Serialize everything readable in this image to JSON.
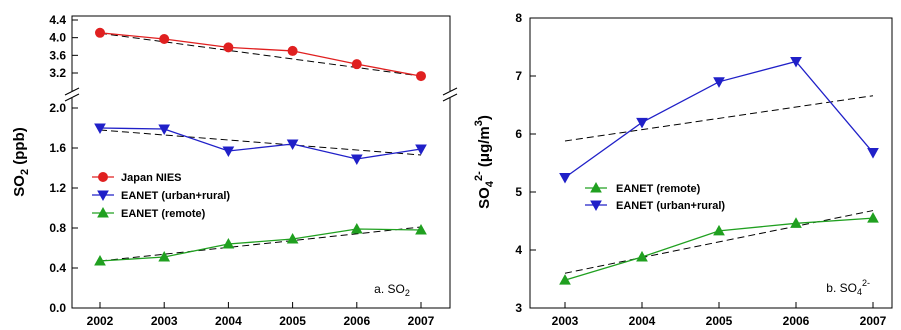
{
  "chart_data": [
    {
      "type": "line",
      "panel_label": {
        "main": "a. SO",
        "sub": "2"
      },
      "ylabel": {
        "main": "SO",
        "sub": "2",
        "rest": " (ppb)"
      },
      "x": [
        2002,
        2003,
        2004,
        2005,
        2006,
        2007
      ],
      "x_tick_labels": [
        "2002",
        "2003",
        "2004",
        "2005",
        "2006",
        "2007"
      ],
      "y_broken_axis": true,
      "y_upper_ticks": [
        "3.2",
        "3.6",
        "4.0",
        "4.4"
      ],
      "y_upper_tick_values": [
        3.2,
        3.6,
        4.0,
        4.4
      ],
      "y_upper_range": [
        3.0,
        4.4
      ],
      "y_lower_ticks": [
        "0.0",
        "0.4",
        "0.8",
        "1.2",
        "1.6",
        "2.0"
      ],
      "y_lower_tick_values": [
        0.0,
        0.4,
        0.8,
        1.2,
        1.6,
        2.0
      ],
      "y_lower_range": [
        0.0,
        2.2
      ],
      "legend_position": "middle-left",
      "series": [
        {
          "name": "Japan NIES",
          "color": "#e02020",
          "marker": "circle",
          "segment": "upper",
          "x": [
            2002,
            2003,
            2004,
            2005,
            2006,
            2007
          ],
          "values": [
            4.11,
            3.97,
            3.78,
            3.7,
            3.4,
            3.13
          ],
          "trend": [
            4.1,
            3.13
          ]
        },
        {
          "name": "EANET (urban+rural)",
          "color": "#2020c8",
          "marker": "triangle-down",
          "segment": "lower",
          "x": [
            2002,
            2003,
            2004,
            2005,
            2006,
            2007
          ],
          "values": [
            1.8,
            1.79,
            1.57,
            1.64,
            1.49,
            1.59
          ],
          "trend": [
            1.78,
            1.53
          ]
        },
        {
          "name": "EANET (remote)",
          "color": "#20a020",
          "marker": "triangle-up",
          "segment": "lower",
          "x": [
            2002,
            2003,
            2004,
            2005,
            2006,
            2007
          ],
          "values": [
            0.47,
            0.51,
            0.64,
            0.69,
            0.79,
            0.78
          ],
          "trend": [
            0.47,
            0.81
          ]
        }
      ]
    },
    {
      "type": "line",
      "panel_label": {
        "main": "b. SO",
        "sub": "4",
        "sup": "2-"
      },
      "ylabel": {
        "main": "SO",
        "sub": "4",
        "sup": "2-",
        "rest": " (μg/m",
        "sup2": "3",
        "close": ")"
      },
      "x": [
        2003,
        2004,
        2005,
        2006,
        2007
      ],
      "x_tick_labels": [
        "2003",
        "2004",
        "2005",
        "2006",
        "2007"
      ],
      "y_ticks": [
        "3",
        "4",
        "5",
        "6",
        "7",
        "8"
      ],
      "y_tick_values": [
        3,
        4,
        5,
        6,
        7,
        8
      ],
      "y_range": [
        3,
        8
      ],
      "legend_position": "middle-center",
      "series": [
        {
          "name": "EANET (remote)",
          "color": "#20a020",
          "marker": "triangle-up",
          "x": [
            2003,
            2004,
            2005,
            2006,
            2007
          ],
          "values": [
            3.48,
            3.88,
            4.33,
            4.46,
            4.55
          ],
          "trend": [
            3.6,
            4.68
          ]
        },
        {
          "name": "EANET (urban+rural)",
          "color": "#2020c8",
          "marker": "triangle-down",
          "x": [
            2003,
            2004,
            2005,
            2006,
            2007
          ],
          "values": [
            5.25,
            6.2,
            6.9,
            7.25,
            5.68
          ],
          "trend": [
            5.88,
            6.66
          ]
        }
      ]
    }
  ]
}
